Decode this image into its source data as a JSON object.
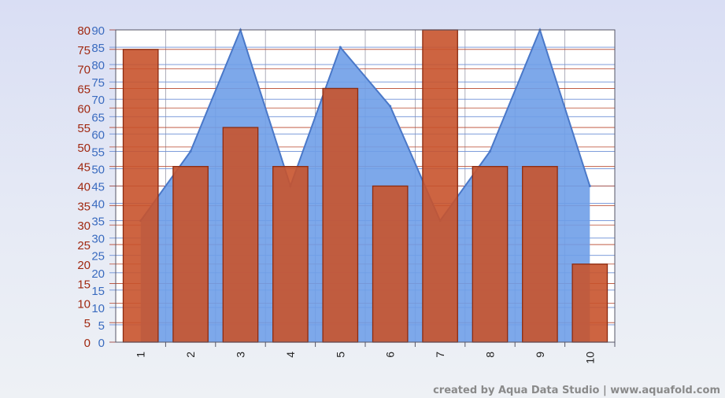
{
  "chart_data": {
    "type": "bar",
    "categories": [
      "1",
      "2",
      "3",
      "4",
      "5",
      "6",
      "7",
      "8",
      "9",
      "10"
    ],
    "series": [
      {
        "type": "area",
        "axis": "right-inner",
        "color": "#6f9fe8",
        "line_color": "#4a78c8",
        "values": [
          35,
          55,
          90,
          45,
          85,
          68,
          35,
          55,
          90,
          45
        ]
      },
      {
        "type": "bar",
        "axis": "left-outer",
        "color": "#c8532c",
        "border_color": "#8c2b10",
        "values": [
          75,
          45,
          55,
          45,
          65,
          40,
          80,
          45,
          45,
          20
        ]
      }
    ],
    "y_axis_outer": {
      "min": 0,
      "max": 80,
      "step": 5,
      "color": "#a02810",
      "ticks": [
        "0",
        "5",
        "10",
        "15",
        "20",
        "25",
        "30",
        "35",
        "40",
        "45",
        "50",
        "55",
        "60",
        "65",
        "70",
        "75",
        "80"
      ]
    },
    "y_axis_inner": {
      "min": 0,
      "max": 90,
      "step": 5,
      "color": "#3a6bbf",
      "ticks": [
        "0",
        "5",
        "10",
        "15",
        "20",
        "25",
        "30",
        "35",
        "40",
        "45",
        "50",
        "55",
        "60",
        "65",
        "70",
        "75",
        "80",
        "85",
        "90"
      ]
    },
    "grid": true,
    "title": "",
    "xlabel": "",
    "ylabel": ""
  },
  "footer": {
    "credit": "created by Aqua Data Studio | www.aquafold.com"
  }
}
